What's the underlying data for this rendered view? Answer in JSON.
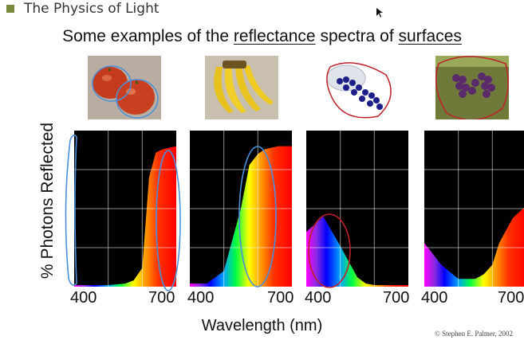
{
  "header": {
    "section_title": "The Physics of Light"
  },
  "slide": {
    "heading_prefix": "Some examples of the ",
    "heading_term1": "reflectance",
    "heading_middle": " spectra of ",
    "heading_term2": "surfaces",
    "ylabel": "% Photons Reflected",
    "xlabel": "Wavelength (nm)",
    "copyright": "© Stephen E. Palmer, 2002"
  },
  "panels": [
    {
      "object": "tomatoes",
      "photo_icon": "tomatoes-photo",
      "tick_left": "400",
      "tick_right": "700"
    },
    {
      "object": "bananas",
      "photo_icon": "bananas-photo",
      "tick_left": "400",
      "tick_right": "700"
    },
    {
      "object": "blueberries",
      "photo_icon": "blueberries-photo",
      "tick_left": "400",
      "tick_right": "700"
    },
    {
      "object": "grapes",
      "photo_icon": "grapes-photo",
      "tick_left": "400",
      "tick_right": "700"
    }
  ],
  "chart_data": {
    "type": "area",
    "title": "Some examples of the reflectance spectra of surfaces",
    "xlabel": "Wavelength (nm)",
    "ylabel": "% Photons Reflected",
    "xlim": [
      400,
      700
    ],
    "ylim": [
      0,
      100
    ],
    "x": [
      400,
      450,
      500,
      550,
      575,
      600,
      620,
      640,
      660,
      680,
      700
    ],
    "series": [
      {
        "name": "tomatoes",
        "values": [
          1,
          1,
          1,
          2,
          4,
          12,
          70,
          86,
          88,
          89,
          90
        ]
      },
      {
        "name": "bananas",
        "values": [
          2,
          2,
          10,
          50,
          78,
          85,
          88,
          89,
          90,
          90,
          90
        ]
      },
      {
        "name": "blueberries",
        "values": [
          35,
          45,
          26,
          6,
          2,
          1,
          1,
          1,
          1,
          1,
          1
        ]
      },
      {
        "name": "grapes",
        "values": [
          28,
          14,
          5,
          5,
          8,
          14,
          28,
          36,
          44,
          48,
          52
        ]
      }
    ]
  },
  "colors": {
    "bullet": "#7a8a3c",
    "annotation": "#4a90d9",
    "annotation_red": "#c0202a",
    "plot_background": "#000000"
  }
}
